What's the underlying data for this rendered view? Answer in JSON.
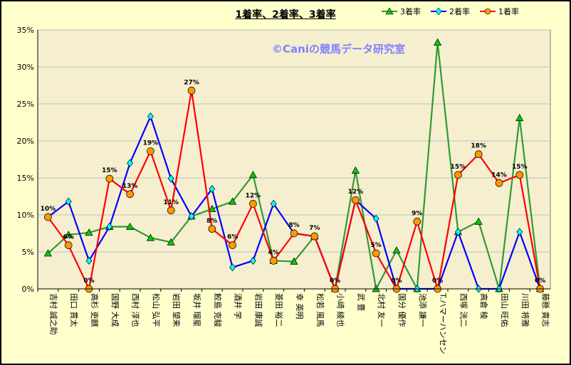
{
  "chart_data": {
    "type": "line",
    "title": "1着率、2着率、3着率",
    "watermark": "©Caniの競馬データ研究室",
    "categories": [
      "吉村 誠之助",
      "田口 貫太",
      "高杉 吏麒",
      "国野 大成",
      "西村 淳也",
      "松山 弘平",
      "岩田 望来",
      "坂井 瑠星",
      "鮫島 克駿",
      "酒井 学",
      "岩田 康誠",
      "菱田 裕二",
      "幸 英明",
      "松若 風馬",
      "小崎 綾也",
      "武 豊",
      "北村 友一",
      "国分 優作",
      "池添 謙一",
      "T.ハマーハンセン",
      "西塚 洸二",
      "高倉 稜",
      "田山 旺佑",
      "川田 将雅",
      "藤懸 貴志"
    ],
    "ylim": [
      0,
      35
    ],
    "yticks": [
      "0%",
      "5%",
      "10%",
      "15%",
      "20%",
      "25%",
      "30%",
      "35%"
    ],
    "grid": true,
    "legend_position": "top-right",
    "series": [
      {
        "name": "3着率",
        "color": "#339933",
        "marker": "triangle",
        "marker_color": "#00cc00",
        "values": [
          4.8,
          7.3,
          7.6,
          8.4,
          8.4,
          6.9,
          6.3,
          9.8,
          10.8,
          11.8,
          15.4,
          3.8,
          3.7,
          7.1,
          0,
          16.0,
          0,
          5.2,
          0,
          33.3,
          7.7,
          9.1,
          0,
          23.1,
          0
        ]
      },
      {
        "name": "2着率",
        "color": "#0000ff",
        "marker": "diamond",
        "marker_color": "#00ffff",
        "values": [
          9.7,
          11.8,
          3.8,
          8.4,
          17.0,
          23.3,
          14.9,
          9.8,
          13.5,
          2.9,
          3.8,
          11.5,
          7.5,
          7.1,
          0,
          12.0,
          9.5,
          0,
          0,
          0,
          7.7,
          0,
          0,
          7.7,
          0
        ]
      },
      {
        "name": "1着率",
        "color": "#ff0000",
        "marker": "circle",
        "marker_color": "#ff9900",
        "values": [
          9.7,
          5.9,
          0,
          14.9,
          12.8,
          18.6,
          10.6,
          26.8,
          8.1,
          5.9,
          11.5,
          3.8,
          7.5,
          7.1,
          0,
          12.0,
          4.8,
          0,
          9.1,
          0,
          15.4,
          18.2,
          14.3,
          15.4,
          0
        ]
      }
    ],
    "data_labels": [
      "10%",
      "6%",
      "0%",
      "15%",
      "13%",
      "19%",
      "11%",
      "27%",
      "8%",
      "6%",
      "12%",
      "4%",
      "8%",
      "7%",
      "0%",
      "12%",
      "5%",
      "0%",
      "9%",
      "0%",
      "15%",
      "18%",
      "14%",
      "15%",
      "0%"
    ]
  }
}
